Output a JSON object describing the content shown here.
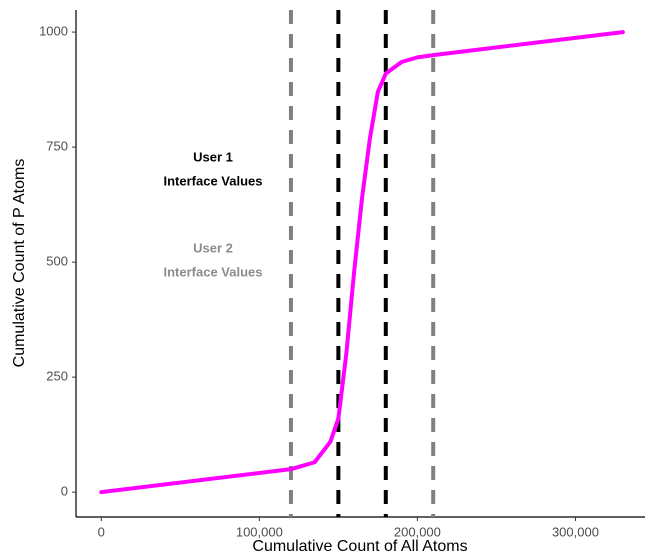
{
  "chart_data": {
    "type": "line",
    "x_label": "Cumulative Count of All Atoms",
    "y_label": "Cumulative Count of P Atoms",
    "xlim": [
      -16000,
      344000
    ],
    "ylim": [
      -54,
      1048
    ],
    "xticks": [
      0,
      {
        "value": 100000,
        "label": "100,000"
      },
      {
        "value": 200000,
        "label": "200,000"
      },
      {
        "value": 300000,
        "label": "300,000"
      }
    ],
    "yticks": [
      0,
      250,
      500,
      750,
      1000
    ],
    "grid": false,
    "series": [
      {
        "color": "#ff00ff",
        "x": [
          0,
          120000,
          135000,
          145000,
          150000,
          155000,
          160000,
          165000,
          170000,
          175000,
          180000,
          190000,
          200000,
          210000,
          330000
        ],
        "values": [
          0,
          50,
          65,
          110,
          160,
          300,
          480,
          640,
          770,
          870,
          910,
          935,
          945,
          950,
          1000
        ]
      }
    ],
    "vlines": [
      {
        "x": 120000,
        "color": "#808080"
      },
      {
        "x": 150000,
        "color": "#000000"
      },
      {
        "x": 180000,
        "color": "#000000"
      },
      {
        "x": 210000,
        "color": "#808080"
      }
    ],
    "annotations": [
      {
        "lines": [
          "User 1",
          "Interface Values"
        ],
        "color": "#000000"
      },
      {
        "lines": [
          "User 2",
          "Interface Values"
        ],
        "color": "#8c8c8c"
      }
    ]
  }
}
